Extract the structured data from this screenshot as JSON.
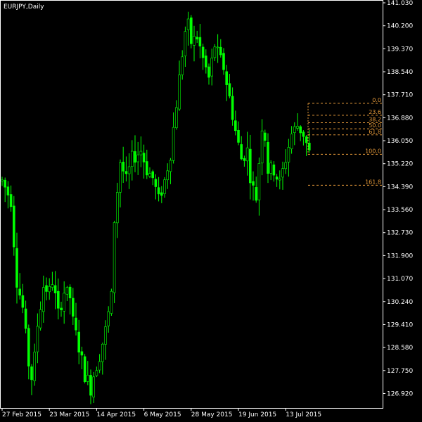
{
  "chart_data": {
    "type": "candlestick",
    "title": "EURJPY,Daily",
    "colors": {
      "background": "#000000",
      "frame": "#ffffff",
      "bars": "#00ff00",
      "fibonacci": "#e69a3a",
      "text": "#ffffff"
    },
    "ylim": [
      126.5,
      141.03
    ],
    "y_ticks": [
      {
        "value": 141.03,
        "label": "141.030"
      },
      {
        "value": 140.2,
        "label": "140.200"
      },
      {
        "value": 139.37,
        "label": "139.370"
      },
      {
        "value": 138.54,
        "label": "138.540"
      },
      {
        "value": 137.71,
        "label": "137.710"
      },
      {
        "value": 136.88,
        "label": "136.880"
      },
      {
        "value": 136.05,
        "label": "136.050"
      },
      {
        "value": 135.22,
        "label": "135.220"
      },
      {
        "value": 134.39,
        "label": "134.390"
      },
      {
        "value": 133.56,
        "label": "133.560"
      },
      {
        "value": 132.73,
        "label": "132.730"
      },
      {
        "value": 131.9,
        "label": "131.900"
      },
      {
        "value": 131.07,
        "label": "131.070"
      },
      {
        "value": 130.24,
        "label": "130.240"
      },
      {
        "value": 129.41,
        "label": "129.410"
      },
      {
        "value": 128.58,
        "label": "128.580"
      },
      {
        "value": 127.75,
        "label": "127.750"
      },
      {
        "value": 126.92,
        "label": "126.920"
      }
    ],
    "x_ticks": [
      {
        "index": 0,
        "label": "27 Feb 2015"
      },
      {
        "index": 16,
        "label": "23 Mar 2015"
      },
      {
        "index": 32,
        "label": "14 Apr 2015"
      },
      {
        "index": 48,
        "label": "6 May 2015"
      },
      {
        "index": 64,
        "label": "28 May 2015"
      },
      {
        "index": 80,
        "label": "19 Jun 2015"
      },
      {
        "index": 96,
        "label": "13 Jul 2015"
      }
    ],
    "waypoints": [
      [
        0,
        134.6
      ],
      [
        3,
        133.9
      ],
      [
        4,
        132.4
      ],
      [
        5,
        131.0
      ],
      [
        7,
        130.0
      ],
      [
        8,
        129.0
      ],
      [
        9,
        128.0
      ],
      [
        10,
        127.5
      ],
      [
        11,
        128.2
      ],
      [
        12,
        129.4
      ],
      [
        14,
        130.8
      ],
      [
        16,
        130.6
      ],
      [
        17,
        131.0
      ],
      [
        19,
        129.8
      ],
      [
        21,
        130.6
      ],
      [
        23,
        130.4
      ],
      [
        24,
        129.5
      ],
      [
        26,
        128.6
      ],
      [
        28,
        127.6
      ],
      [
        29,
        127.4
      ],
      [
        30,
        127.1
      ],
      [
        31,
        127.6
      ],
      [
        33,
        128.3
      ],
      [
        35,
        129.2
      ],
      [
        37,
        130.4
      ],
      [
        38,
        133.2
      ],
      [
        40,
        135.3
      ],
      [
        42,
        134.6
      ],
      [
        44,
        135.4
      ],
      [
        47,
        135.7
      ],
      [
        49,
        135.0
      ],
      [
        51,
        134.7
      ],
      [
        53,
        133.9
      ],
      [
        55,
        134.6
      ],
      [
        57,
        135.6
      ],
      [
        58,
        136.5
      ],
      [
        60,
        138.3
      ],
      [
        61,
        139.2
      ],
      [
        62,
        140.0
      ],
      [
        63,
        140.2
      ],
      [
        64,
        139.6
      ],
      [
        66,
        139.8
      ],
      [
        68,
        139.0
      ],
      [
        70,
        138.3
      ],
      [
        72,
        139.5
      ],
      [
        73,
        139.2
      ],
      [
        75,
        138.7
      ],
      [
        77,
        137.6
      ],
      [
        79,
        136.4
      ],
      [
        81,
        135.4
      ],
      [
        83,
        135.7
      ],
      [
        84,
        134.8
      ],
      [
        85,
        134.3
      ],
      [
        86,
        134.0
      ],
      [
        87,
        135.3
      ],
      [
        88,
        136.6
      ],
      [
        89,
        136.2
      ],
      [
        90,
        135.0
      ],
      [
        92,
        135.0
      ],
      [
        94,
        134.5
      ],
      [
        96,
        135.4
      ],
      [
        98,
        136.3
      ],
      [
        100,
        136.6
      ],
      [
        102,
        136.3
      ],
      [
        104,
        135.6
      ]
    ],
    "fibonacci": {
      "levels": [
        {
          "label": "0.0",
          "value": 137.4
        },
        {
          "label": "23.6",
          "value": 136.97
        },
        {
          "label": "38.2",
          "value": 136.7
        },
        {
          "label": "50.0",
          "value": 136.48
        },
        {
          "label": "61.8",
          "value": 136.26
        },
        {
          "label": "100.0",
          "value": 135.56
        },
        {
          "label": "161.8",
          "value": 134.44
        }
      ]
    }
  }
}
